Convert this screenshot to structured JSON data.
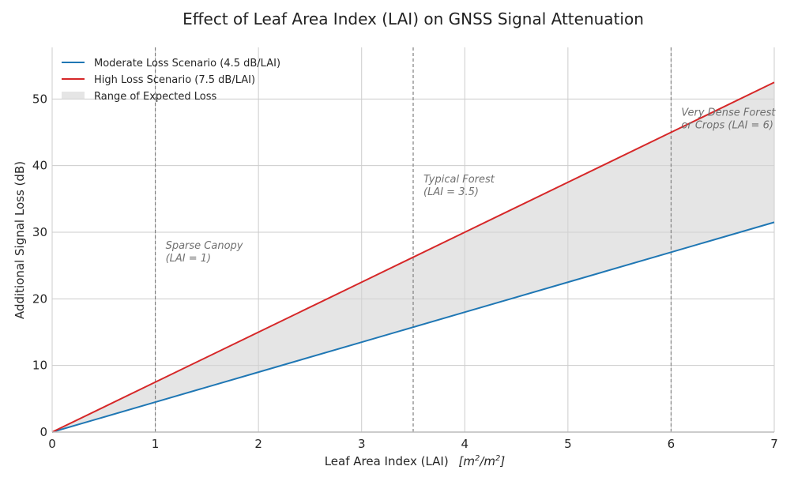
{
  "chart_data": {
    "type": "line",
    "title": "Effect of Leaf Area Index (LAI) on GNSS Signal Attenuation",
    "xlabel": "Leaf Area Index (LAI)",
    "xlabel_unit_base": "m",
    "xlabel_unit_exp": "2",
    "ylabel": "Additional Signal Loss (dB)",
    "xlim": [
      0,
      7
    ],
    "ylim": [
      0,
      57.75
    ],
    "xticks": [
      0,
      1,
      2,
      3,
      4,
      5,
      6,
      7
    ],
    "yticks": [
      0,
      10,
      20,
      30,
      40,
      50
    ],
    "grid": true,
    "legend_position": "top-left",
    "x": [
      0,
      1,
      2,
      3,
      4,
      5,
      6,
      7
    ],
    "series": [
      {
        "name": "Moderate Loss Scenario (4.5 dB/LAI)",
        "slope": 4.5,
        "color": "#1f77b4",
        "values": [
          0,
          4.5,
          9,
          13.5,
          18,
          22.5,
          27,
          31.5
        ]
      },
      {
        "name": "High Loss Scenario (7.5 dB/LAI)",
        "slope": 7.5,
        "color": "#d62728",
        "values": [
          0,
          7.5,
          15,
          22.5,
          30,
          37.5,
          45,
          52.5
        ]
      }
    ],
    "fill": {
      "name": "Range of Expected Loss",
      "color": "#d3d3d3",
      "between": [
        "Moderate Loss Scenario (4.5 dB/LAI)",
        "High Loss Scenario (7.5 dB/LAI)"
      ]
    },
    "vlines": [
      {
        "x": 1,
        "label_line1": "Sparse Canopy",
        "label_line2": "(LAI = 1)",
        "label_y": 27.5
      },
      {
        "x": 3.5,
        "label_line1": "Typical Forest",
        "label_line2": "(LAI = 3.5)",
        "label_y": 37.5
      },
      {
        "x": 6,
        "label_line1": "Very Dense Forest",
        "label_line2": "or Crops (LAI = 6)",
        "label_y": 47.5
      }
    ]
  }
}
